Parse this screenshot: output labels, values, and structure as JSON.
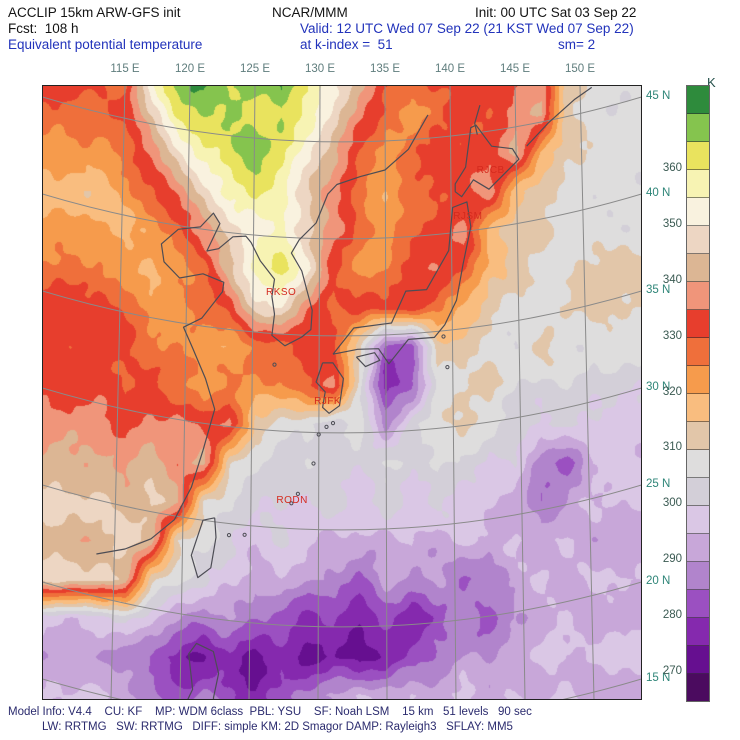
{
  "header": {
    "line1_left": "ACCLIP 15km ARW-GFS init",
    "line1_center": "NCAR/MMM",
    "line1_right": "Init: 00 UTC Sat 03 Sep 22",
    "line2_left": "Fcst:  108 h",
    "line2_right": "Valid: 12 UTC Wed 07 Sep 22 (21 KST Wed 07 Sep 22)",
    "line3_title": "Equivalent potential temperature",
    "line3_level": "at k-index =  51",
    "line3_sm": "sm= 2"
  },
  "footer": {
    "line1": "Model Info: V4.4    CU: KF    MP: WDM 6class  PBL: YSU    SF: Noah LSM    15 km   51 levels   90 sec",
    "line2": "LW: RRTMG   SW: RRTMG   DIFF: simple KM: 2D Smagor DAMP: Rayleigh3   SFLAY: MM5"
  },
  "chart_data": {
    "type": "heatmap",
    "title": "Equivalent potential temperature",
    "units": "K",
    "legend_position": "right",
    "grid_on": true,
    "x_axis": {
      "ticks": [
        115,
        120,
        125,
        130,
        135,
        140,
        145,
        150
      ],
      "suffix": " E"
    },
    "y_axis": {
      "ticks": [
        45,
        40,
        35,
        30,
        25,
        20,
        15
      ],
      "suffix": " N"
    },
    "colorbar": {
      "unit_label": "K",
      "bin_min_K": 265,
      "bin_size_K": 5,
      "tick_labels": [
        360,
        350,
        340,
        330,
        320,
        310,
        300,
        290,
        280,
        270
      ],
      "colors_low_to_high": [
        "#4b0b5f",
        "#660f90",
        "#8529ae",
        "#9b50c1",
        "#b184cc",
        "#c8a7d9",
        "#dac7e5",
        "#d3cfd8",
        "#dedddd",
        "#e2c6a9",
        "#f9bd7f",
        "#f69b4c",
        "#ef6f3b",
        "#e73e2d",
        "#f0957a",
        "#dcb694",
        "#edd6c3",
        "#f9f2df",
        "#f7f3b3",
        "#e9e35e",
        "#85c44e",
        "#2e8b3c"
      ]
    },
    "stations": [
      {
        "id": "RJCB",
        "lon": 143.2,
        "lat": 42.9
      },
      {
        "id": "RJSM",
        "lon": 141.4,
        "lat": 40.7
      },
      {
        "id": "RKSO",
        "lon": 127.0,
        "lat": 37.1
      },
      {
        "id": "RJFK",
        "lon": 130.7,
        "lat": 31.6
      },
      {
        "id": "RODN",
        "lon": 127.8,
        "lat": 26.4
      }
    ],
    "grid": {
      "lon_min": 113,
      "lon_step": 2,
      "lat_max": 46,
      "lat_step": 2,
      "ncols": 20,
      "nrows": 17,
      "values_K": [
        [
          332,
          327,
          357,
          367,
          372,
          362,
          367,
          372,
          362,
          352,
          342,
          332,
          327,
          332,
          332,
          332,
          332,
          337,
          312,
          307
        ],
        [
          327,
          332,
          347,
          362,
          367,
          367,
          362,
          367,
          357,
          347,
          337,
          327,
          322,
          327,
          332,
          332,
          337,
          342,
          312,
          307
        ],
        [
          322,
          327,
          337,
          347,
          357,
          362,
          367,
          362,
          352,
          342,
          327,
          322,
          327,
          332,
          332,
          332,
          342,
          317,
          312,
          307
        ],
        [
          317,
          322,
          327,
          337,
          347,
          357,
          362,
          357,
          347,
          337,
          327,
          322,
          327,
          332,
          332,
          337,
          317,
          312,
          307,
          307
        ],
        [
          322,
          317,
          322,
          327,
          337,
          347,
          352,
          357,
          347,
          337,
          327,
          322,
          327,
          332,
          337,
          317,
          312,
          312,
          307,
          307
        ],
        [
          327,
          322,
          317,
          322,
          327,
          342,
          357,
          362,
          352,
          332,
          322,
          327,
          332,
          337,
          332,
          317,
          312,
          307,
          307,
          312
        ],
        [
          332,
          327,
          322,
          322,
          327,
          332,
          347,
          352,
          337,
          327,
          332,
          332,
          332,
          327,
          317,
          312,
          307,
          307,
          312,
          312
        ],
        [
          332,
          332,
          327,
          327,
          322,
          322,
          327,
          327,
          332,
          332,
          312,
          282,
          282,
          312,
          312,
          307,
          307,
          312,
          307,
          307
        ],
        [
          332,
          327,
          332,
          327,
          322,
          327,
          322,
          327,
          332,
          337,
          307,
          277,
          282,
          307,
          307,
          312,
          307,
          302,
          307,
          302
        ],
        [
          337,
          332,
          337,
          337,
          332,
          337,
          312,
          307,
          307,
          302,
          307,
          287,
          302,
          307,
          312,
          307,
          302,
          297,
          302,
          297
        ],
        [
          342,
          337,
          342,
          337,
          342,
          312,
          307,
          302,
          307,
          302,
          302,
          307,
          302,
          307,
          302,
          297,
          302,
          287,
          282,
          297
        ],
        [
          347,
          342,
          347,
          342,
          312,
          307,
          302,
          302,
          297,
          302,
          297,
          302,
          297,
          302,
          297,
          297,
          292,
          287,
          292,
          297
        ],
        [
          342,
          347,
          342,
          312,
          307,
          302,
          297,
          302,
          297,
          292,
          297,
          292,
          297,
          292,
          297,
          292,
          297,
          292,
          297,
          292
        ],
        [
          347,
          342,
          312,
          307,
          302,
          297,
          292,
          297,
          292,
          287,
          282,
          292,
          287,
          292,
          282,
          287,
          292,
          297,
          292,
          297
        ],
        [
          297,
          302,
          297,
          292,
          287,
          292,
          287,
          282,
          277,
          282,
          277,
          282,
          277,
          282,
          287,
          282,
          292,
          292,
          297,
          292
        ],
        [
          292,
          287,
          282,
          277,
          272,
          277,
          272,
          277,
          272,
          277,
          272,
          277,
          282,
          287,
          292,
          287,
          292,
          297,
          292,
          297
        ],
        [
          297,
          292,
          287,
          282,
          287,
          282,
          277,
          282,
          287,
          292,
          297,
          292,
          297,
          292,
          297,
          292,
          297,
          292,
          297,
          292
        ]
      ]
    },
    "coastlines": [
      {
        "name": "china-korea-russia",
        "pts": [
          [
            112.8,
            22.2
          ],
          [
            115,
            22.8
          ],
          [
            117,
            23.6
          ],
          [
            118.8,
            24.8
          ],
          [
            120.1,
            26.6
          ],
          [
            121,
            28.6
          ],
          [
            121.9,
            30.8
          ],
          [
            121.2,
            32.3
          ],
          [
            120.2,
            33.8
          ],
          [
            119.5,
            34.8
          ],
          [
            120.9,
            35.4
          ],
          [
            122.5,
            36.9
          ],
          [
            122.6,
            37.4
          ],
          [
            121,
            37.7
          ],
          [
            119.2,
            37.3
          ],
          [
            118,
            38
          ],
          [
            117.8,
            38.9
          ],
          [
            119.1,
            39.8
          ],
          [
            120.8,
            40.1
          ],
          [
            121.8,
            40.9
          ],
          [
            122.3,
            40.4
          ],
          [
            121.3,
            38.9
          ],
          [
            122.2,
            39.1
          ],
          [
            123.3,
            39.8
          ],
          [
            124.3,
            39.9
          ],
          [
            124.7,
            39.6
          ],
          [
            125.4,
            38.7
          ],
          [
            126.5,
            37.8
          ],
          [
            126.3,
            36.9
          ],
          [
            126.5,
            36
          ],
          [
            126.3,
            34.9
          ],
          [
            127.3,
            34.4
          ],
          [
            128.6,
            34.9
          ],
          [
            129.3,
            35.3
          ],
          [
            129.4,
            36.3
          ],
          [
            129,
            37.3
          ],
          [
            128.6,
            38.3
          ],
          [
            127.8,
            39.2
          ],
          [
            128.4,
            39.9
          ],
          [
            129.7,
            40.8
          ],
          [
            130.6,
            42.3
          ],
          [
            131.3,
            42.8
          ],
          [
            133.1,
            43.2
          ],
          [
            135,
            43.5
          ],
          [
            136.8,
            44.5
          ],
          [
            138.3,
            46.2
          ]
        ]
      },
      {
        "name": "honshu",
        "pts": [
          [
            131,
            34.05
          ],
          [
            132.6,
            35.4
          ],
          [
            135.5,
            35.6
          ],
          [
            136.6,
            37.2
          ],
          [
            138.2,
            37.2
          ],
          [
            139.9,
            39.1
          ],
          [
            140.2,
            41.3
          ],
          [
            141.3,
            41.5
          ],
          [
            141.6,
            40.2
          ],
          [
            141,
            38.3
          ],
          [
            140.5,
            36.5
          ],
          [
            139.6,
            35.3
          ],
          [
            138.8,
            34.7
          ],
          [
            136.8,
            34.7
          ],
          [
            135.3,
            33.5
          ],
          [
            134.5,
            34.3
          ],
          [
            132.9,
            34.3
          ],
          [
            131,
            34.05
          ]
        ]
      },
      {
        "name": "hokkaido",
        "pts": [
          [
            140.4,
            42.1
          ],
          [
            140.9,
            41.8
          ],
          [
            141.8,
            42.6
          ],
          [
            143,
            42
          ],
          [
            145.3,
            43.3
          ],
          [
            144.8,
            43.9
          ],
          [
            143.2,
            44.2
          ],
          [
            142,
            45.4
          ],
          [
            141.6,
            45.3
          ],
          [
            141.2,
            43.3
          ],
          [
            140.4,
            42.5
          ],
          [
            140.4,
            42.1
          ]
        ]
      },
      {
        "name": "kyushu",
        "pts": [
          [
            130.2,
            33.6
          ],
          [
            131,
            33.6
          ],
          [
            131.8,
            32.8
          ],
          [
            131.5,
            31.4
          ],
          [
            130.7,
            31
          ],
          [
            130.2,
            31.3
          ],
          [
            130.4,
            32.1
          ],
          [
            129.7,
            32.6
          ],
          [
            130.2,
            33.6
          ]
        ]
      },
      {
        "name": "shikoku",
        "pts": [
          [
            132.8,
            33.9
          ],
          [
            134.2,
            34.1
          ],
          [
            134.6,
            33.7
          ],
          [
            133.5,
            33.4
          ],
          [
            132.8,
            33.9
          ]
        ]
      },
      {
        "name": "taiwan",
        "pts": [
          [
            121.9,
            25.2
          ],
          [
            121,
            25
          ],
          [
            120.1,
            23.1
          ],
          [
            120.6,
            22
          ],
          [
            121.6,
            22.6
          ],
          [
            122,
            24.2
          ],
          [
            121.9,
            25.2
          ]
        ]
      },
      {
        "name": "luzon",
        "pts": [
          [
            120.1,
            13.8
          ],
          [
            119.8,
            15.6
          ],
          [
            120.2,
            16.2
          ],
          [
            119.9,
            18
          ],
          [
            120.5,
            18.6
          ],
          [
            121.8,
            18.3
          ],
          [
            122.2,
            17.2
          ],
          [
            121.8,
            15.9
          ],
          [
            122.3,
            14.5
          ]
        ]
      },
      {
        "name": "sakhalin",
        "pts": [
          [
            142.3,
            46.4
          ],
          [
            141.9,
            45.5
          ],
          [
            142.1,
            44.9
          ]
        ]
      },
      {
        "name": "kurils",
        "pts": [
          [
            145.9,
            43.9
          ],
          [
            147.6,
            44.9
          ],
          [
            149.6,
            45.8
          ],
          [
            150.9,
            46.2
          ]
        ]
      }
    ],
    "islands": [
      [
        126.5,
        33.4
      ],
      [
        129.5,
        28.4
      ],
      [
        127.8,
        26.3
      ],
      [
        128.3,
        26.8
      ],
      [
        124.2,
        24.5
      ],
      [
        123,
        24.4
      ],
      [
        131,
        30.5
      ],
      [
        130.5,
        30.3
      ],
      [
        129.9,
        29.9
      ],
      [
        139.8,
        33.1
      ],
      [
        139.5,
        34.7
      ]
    ]
  },
  "colors": {
    "accent_blue": "#2233bb",
    "footer_navy": "#2b2b6e",
    "station_red": "#d42a1e",
    "lon_label": "#5f7d7d",
    "lat_label": "#2e8578"
  }
}
